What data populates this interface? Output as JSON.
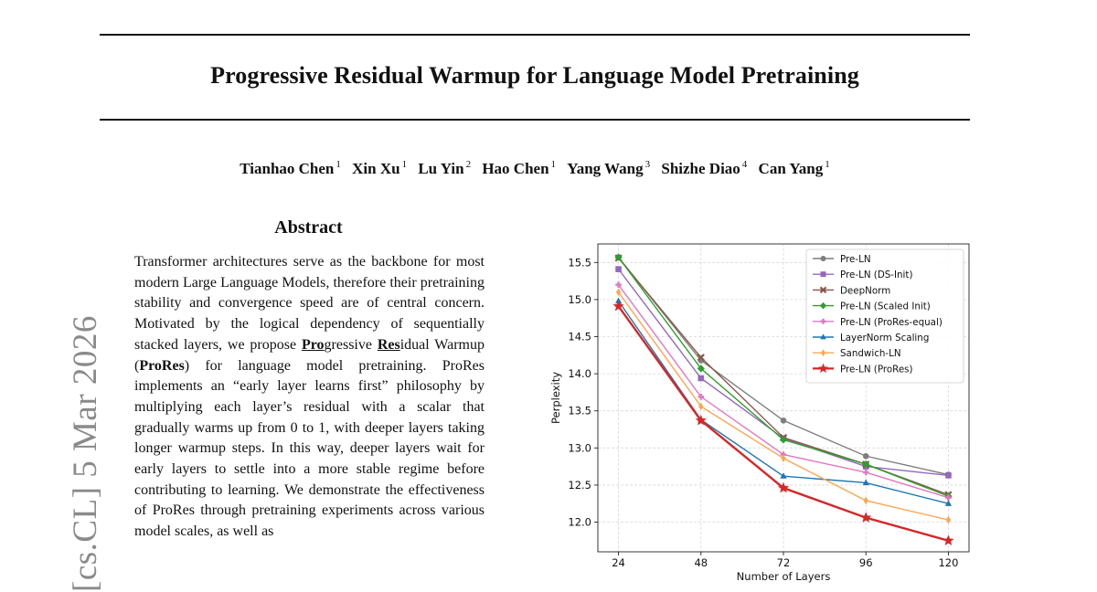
{
  "paper": {
    "title": "Progressive Residual Warmup for Language Model Pretraining",
    "authors": [
      {
        "name": "Tianhao Chen",
        "affil": "1"
      },
      {
        "name": "Xin Xu",
        "affil": "1"
      },
      {
        "name": "Lu Yin",
        "affil": "2"
      },
      {
        "name": "Hao Chen",
        "affil": "1"
      },
      {
        "name": "Yang Wang",
        "affil": "3"
      },
      {
        "name": "Shizhe Diao",
        "affil": "4"
      },
      {
        "name": "Can Yang",
        "affil": "1"
      }
    ],
    "side_stamp": "[cs.CL]  5 Mar 2026",
    "abstract": {
      "heading": "Abstract",
      "text_1": "Transformer architectures serve as the backbone for most modern Large Language Models, therefore their pretraining stability and convergence speed are of central concern. Motivated by the logical dependency of sequentially stacked layers, we propose ",
      "pro": "Pro",
      "text_2": "gressive ",
      "res": "Res",
      "text_3": "idual Warmup (",
      "prores": "ProRes",
      "text_4": ") for language model pretraining. ProRes implements an “early layer learns first” philosophy by multiplying each layer’s residual with a scalar that gradually warms up from 0 to 1, with deeper layers taking longer warmup steps. In this way, deeper layers wait for early layers to settle into a more stable regime before contributing to learning. We demonstrate the effectiveness of ProRes through pretraining experiments across various model scales, as well as"
    }
  },
  "chart_data": {
    "type": "line",
    "xlabel": "Number of Layers",
    "ylabel": "Perplexity",
    "x": [
      24,
      48,
      72,
      96,
      120
    ],
    "xlim": [
      18,
      126
    ],
    "ylim": [
      11.6,
      15.75
    ],
    "yticks": [
      12.0,
      12.5,
      13.0,
      13.5,
      14.0,
      14.5,
      15.0,
      15.5
    ],
    "ytick_labels": [
      "12.0",
      "12.5",
      "13.0",
      "13.5",
      "14.0",
      "14.5",
      "15.0",
      "15.5"
    ],
    "xtick_labels": [
      "24",
      "48",
      "72",
      "96",
      "120"
    ],
    "grid": true,
    "legend_position": "top-right",
    "series": [
      {
        "name": "Pre-LN",
        "color": "#7f7f7f",
        "marker": "circle",
        "values": [
          15.57,
          14.18,
          13.37,
          12.89,
          12.64
        ]
      },
      {
        "name": "Pre-LN (DS-Init)",
        "color": "#9467bd",
        "marker": "square",
        "values": [
          15.41,
          13.94,
          13.13,
          12.75,
          12.63
        ]
      },
      {
        "name": "DeepNorm",
        "color": "#8c564b",
        "marker": "x",
        "values": [
          15.56,
          14.22,
          13.14,
          12.78,
          12.37
        ]
      },
      {
        "name": "Pre-LN (Scaled Init)",
        "color": "#2ca02c",
        "marker": "diamond",
        "values": [
          15.57,
          14.07,
          13.11,
          12.78,
          12.35
        ]
      },
      {
        "name": "Pre-LN (ProRes-equal)",
        "color": "#e377c2",
        "marker": "plus",
        "values": [
          15.2,
          13.69,
          12.91,
          12.67,
          12.33
        ]
      },
      {
        "name": "LayerNorm Scaling",
        "color": "#1f77b4",
        "marker": "triangle",
        "values": [
          14.98,
          13.38,
          12.62,
          12.53,
          12.25
        ]
      },
      {
        "name": "Sandwich-LN",
        "color": "#ffa54f",
        "marker": "thin-diamond",
        "values": [
          15.1,
          13.56,
          12.86,
          12.29,
          12.03
        ]
      },
      {
        "name": "Pre-LN (ProRes)",
        "color": "#d62728",
        "marker": "star",
        "values": [
          14.91,
          13.37,
          12.46,
          12.06,
          11.75
        ]
      }
    ]
  }
}
